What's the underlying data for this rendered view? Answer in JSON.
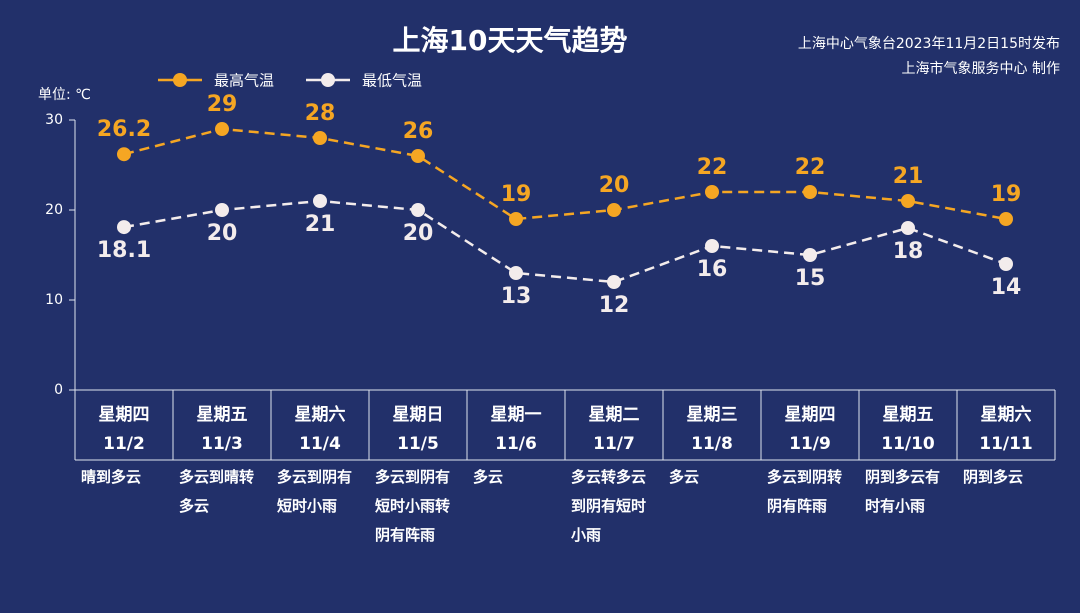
{
  "chart_data": {
    "type": "line",
    "title": "上海10天天气趋势",
    "notes": [
      "上海中心气象台2023年11月2日15时发布",
      "上海市气象服务中心 制作"
    ],
    "y_label": "单位: ℃",
    "categories": [
      "11/2",
      "11/3",
      "11/4",
      "11/5",
      "11/6",
      "11/7",
      "11/8",
      "11/9",
      "11/10",
      "11/11"
    ],
    "weekdays": [
      "星期四",
      "星期五",
      "星期六",
      "星期日",
      "星期一",
      "星期二",
      "星期三",
      "星期四",
      "星期五",
      "星期六"
    ],
    "weather": [
      "晴到多云",
      "多云到晴转多云",
      "多云到阴有短时小雨",
      "多云到阴有短时小雨转阴有阵雨",
      "多云",
      "多云转多云到阴有短时小雨",
      "多云",
      "多云到阴转阴有阵雨",
      "阴到多云有时有小雨",
      "阴到多云"
    ],
    "series": [
      {
        "name": "最高气温",
        "color": "#f5a623",
        "values": [
          26.2,
          29,
          28,
          26,
          19,
          20,
          22,
          22,
          21,
          19
        ]
      },
      {
        "name": "最低气温",
        "color": "#f3ecec",
        "values": [
          18.1,
          20,
          21,
          20,
          13,
          12,
          16,
          15,
          18,
          14
        ]
      }
    ],
    "ylim": [
      0,
      30
    ],
    "yticks": [
      0,
      10,
      20,
      30
    ],
    "grid": false
  }
}
